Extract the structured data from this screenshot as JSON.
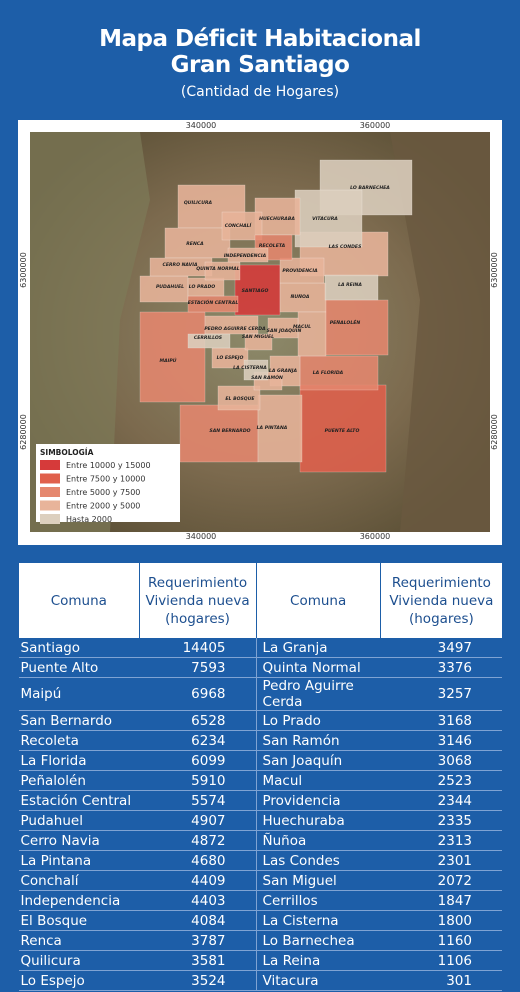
{
  "header": {
    "title": [
      "Mapa Déficit Habitacional",
      "Gran Santiago"
    ],
    "subtitle": "(Cantidad de Hogares)"
  },
  "map": {
    "x_coords": [
      "340000",
      "360000"
    ],
    "y_coords": [
      "6300000",
      "6280000"
    ],
    "comunas": [
      "QUILICURA",
      "CONCHALÍ",
      "HUECHURABA",
      "VITACURA",
      "LO BARNECHEA",
      "RENCA",
      "RECOLETA",
      "LAS CONDES",
      "INDEPENDENCIA",
      "CERRO NAVIA",
      "QUINTA NORMAL",
      "PROVIDENCIA",
      "LA REINA",
      "PUDAHUEL",
      "LO PRADO",
      "SANTIAGO",
      "ÑUÑOA",
      "ESTACIÓN CENTRAL",
      "PEÑALOLÉN",
      "PEDRO AGUIRRE CERDA",
      "SAN JOAQUIN",
      "MACUL",
      "CERRILLOS",
      "SAN MIGUEL",
      "MAIPÚ",
      "LO ESPEJO",
      "LA CISTERNA",
      "LA GRANJA",
      "SAN RAMÓN",
      "LA FLORIDA",
      "EL BOSQUE",
      "SAN BERNARDO",
      "LA PINTANA",
      "PUENTE ALTO"
    ],
    "legend": {
      "title": "SIMBOLOGÍA",
      "items": [
        {
          "label": "Entre 10000 y 15000",
          "color": "#d63a3a"
        },
        {
          "label": "Entre 7500 y 10000",
          "color": "#e0604c"
        },
        {
          "label": "Entre 5000 y 7500",
          "color": "#e5876e"
        },
        {
          "label": "Entre 2000 y 5000",
          "color": "#e8b49a"
        },
        {
          "label": "Hasta 2000",
          "color": "#dccfbe"
        }
      ]
    }
  },
  "table": {
    "headers": [
      [
        "Comuna"
      ],
      [
        "Requerimiento",
        "Vivienda nueva",
        "(hogares)"
      ],
      [
        "Comuna"
      ],
      [
        "Requerimiento",
        "Vivienda nueva",
        "(hogares)"
      ]
    ],
    "rows": [
      [
        "Santiago",
        14405,
        "La Granja",
        3497
      ],
      [
        "Puente Alto",
        7593,
        "Quinta Normal",
        3376
      ],
      [
        "Maipú",
        6968,
        "Pedro Aguirre Cerda",
        3257
      ],
      [
        "San Bernardo",
        6528,
        "Lo Prado",
        3168
      ],
      [
        "Recoleta",
        6234,
        "San Ramón",
        3146
      ],
      [
        "La Florida",
        6099,
        "San Joaquín",
        3068
      ],
      [
        "Peñalolén",
        5910,
        "Macul",
        2523
      ],
      [
        "Estación Central",
        5574,
        "Providencia",
        2344
      ],
      [
        "Pudahuel",
        4907,
        "Huechuraba",
        2335
      ],
      [
        "Cerro Navia",
        4872,
        "Ñuñoa",
        2313
      ],
      [
        "La Pintana",
        4680,
        "Las Condes",
        2301
      ],
      [
        "Conchalí",
        4409,
        "San Miguel",
        2072
      ],
      [
        "Independencia",
        4403,
        "Cerrillos",
        1847
      ],
      [
        "El Bosque",
        4084,
        "La Cisterna",
        1800
      ],
      [
        "Renca",
        3787,
        "Lo Barnechea",
        1160
      ],
      [
        "Quilicura",
        3581,
        "La Reina",
        1106
      ],
      [
        "Lo Espejo",
        3524,
        "Vitacura",
        301
      ]
    ]
  }
}
